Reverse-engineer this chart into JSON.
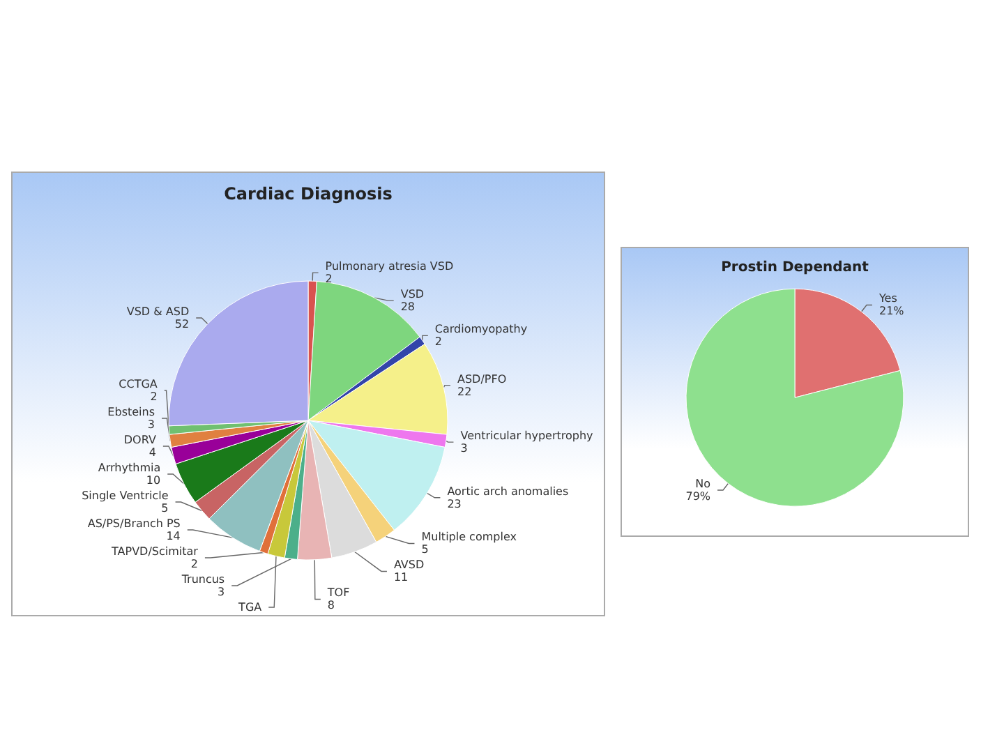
{
  "chart_data": [
    {
      "type": "pie",
      "title": "Cardiac Diagnosis",
      "categories": [
        "Pulmonary atresia VSD",
        "VSD",
        "Cardiomyopathy",
        "ASD/PFO",
        "Ventricular hypertrophy",
        "Aortic arch anomalies",
        "Multiple complex",
        "AVSD",
        "TOF",
        "Truncus",
        "TGA",
        "TAPVD/Scimitar",
        "AS/PS/Branch PS",
        "Single Ventricle",
        "Arrhythmia",
        "DORV",
        "Ebsteins",
        "CCTGA",
        "VSD & ASD"
      ],
      "values": [
        2,
        28,
        2,
        22,
        3,
        23,
        5,
        11,
        8,
        3,
        4,
        2,
        14,
        5,
        10,
        4,
        3,
        2,
        52
      ],
      "value_labels": [
        "2",
        "28",
        "2",
        "22",
        "3",
        "23",
        "5",
        "11",
        "8",
        "3",
        null,
        "2",
        "14",
        "5",
        "10",
        "4",
        "3",
        "2",
        "52"
      ],
      "colors": [
        "#d9534f",
        "#7ed67e",
        "#3344aa",
        "#f5f08a",
        "#ee77ee",
        "#bff0f0",
        "#f5d27a",
        "#dcdcdc",
        "#e8b4b4",
        "#4caf8a",
        "#c8c83a",
        "#e0703a",
        "#8fc0c0",
        "#c86464",
        "#1a7a1a",
        "#990099",
        "#e08040",
        "#70c070",
        "#aaaaee"
      ],
      "legend": false
    },
    {
      "type": "pie",
      "title": "Prostin Dependant",
      "categories": [
        "Yes",
        "No"
      ],
      "values": [
        21,
        79
      ],
      "value_labels": [
        "21%",
        "79%"
      ],
      "colors": [
        "#e07070",
        "#8ee08e"
      ],
      "legend": false
    }
  ]
}
